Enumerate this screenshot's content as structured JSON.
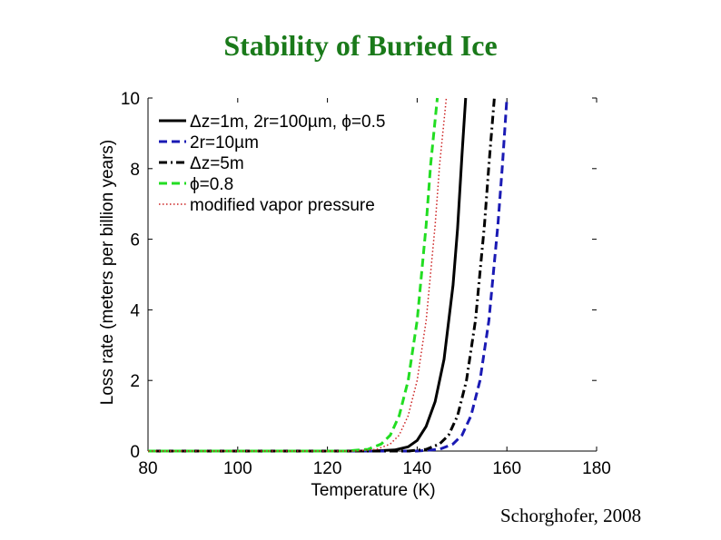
{
  "slide": {
    "title": "Stability of Buried Ice",
    "credit": "Schorghofer, 2008"
  },
  "chart_data": {
    "type": "line",
    "title": "",
    "xlabel": "Temperature (K)",
    "ylabel": "Loss rate (meters per billion years)",
    "xlim": [
      80,
      180
    ],
    "ylim": [
      0,
      10
    ],
    "xticks": [
      80,
      100,
      120,
      140,
      160,
      180
    ],
    "yticks": [
      0,
      2,
      4,
      6,
      8,
      10
    ],
    "legend_position": "top-left",
    "grid": false,
    "series": [
      {
        "name": "Δz=1m, 2r=100µm, ϕ=0.5",
        "color": "#000000",
        "style": "solid",
        "x": [
          130,
          135,
          138,
          140,
          142,
          144,
          146,
          148,
          149,
          150,
          150.8
        ],
        "y": [
          0.0,
          0.03,
          0.12,
          0.3,
          0.7,
          1.4,
          2.6,
          4.7,
          6.3,
          8.4,
          10
        ]
      },
      {
        "name": "2r=10µm",
        "color": "#1a1ab4",
        "style": "dashed",
        "x": [
          140,
          145,
          148,
          150,
          152,
          154,
          156,
          158,
          159,
          160
        ],
        "y": [
          0.0,
          0.05,
          0.2,
          0.45,
          1.0,
          2.0,
          3.7,
          6.4,
          8.1,
          10
        ]
      },
      {
        "name": "Δz=5m",
        "color": "#000000",
        "style": "dashdot",
        "x": [
          138,
          142,
          145,
          147,
          149,
          151,
          153,
          155,
          156,
          157.2
        ],
        "y": [
          0.0,
          0.05,
          0.2,
          0.45,
          1.0,
          2.0,
          3.7,
          6.4,
          8.1,
          10
        ]
      },
      {
        "name": "ϕ=0.8",
        "color": "#22dd22",
        "style": "dashed",
        "x": [
          124,
          129,
          132,
          134,
          136,
          138,
          140,
          142,
          143,
          144.5
        ],
        "y": [
          0.0,
          0.05,
          0.2,
          0.45,
          1.0,
          2.0,
          3.7,
          6.4,
          8.1,
          10
        ]
      },
      {
        "name": "modified vapor pressure",
        "color": "#cc2222",
        "style": "dotted",
        "x": [
          126,
          131,
          134,
          136,
          138,
          140,
          142,
          144,
          145,
          146.5
        ],
        "y": [
          0.0,
          0.05,
          0.2,
          0.45,
          1.0,
          2.0,
          3.7,
          6.4,
          8.1,
          10
        ]
      }
    ]
  }
}
